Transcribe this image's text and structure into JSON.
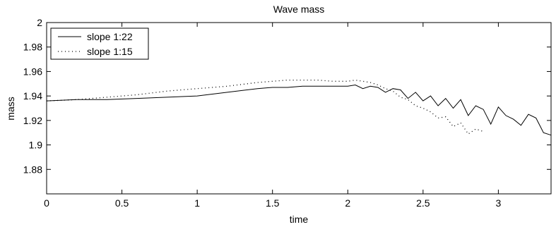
{
  "chart_data": {
    "type": "line",
    "title": "Wave mass",
    "xlabel": "time",
    "ylabel": "mass",
    "xlim": [
      0,
      3.35
    ],
    "ylim": [
      1.86,
      2.0
    ],
    "xticks": [
      0,
      0.5,
      1,
      1.5,
      2,
      2.5,
      3
    ],
    "xtick_labels": [
      "0",
      "0.5",
      "1",
      "1.5",
      "2",
      "2.5",
      "3"
    ],
    "yticks": [
      1.88,
      1.9,
      1.92,
      1.94,
      1.96,
      1.98,
      2.0
    ],
    "ytick_labels": [
      "1.88",
      "1.9",
      "1.92",
      "1.94",
      "1.96",
      "1.98",
      "2"
    ],
    "grid": false,
    "legend_position": "top-left",
    "series": [
      {
        "name": "slope 1:22",
        "style": "solid",
        "color": "#000000",
        "x": [
          0,
          0.2,
          0.4,
          0.6,
          0.8,
          1.0,
          1.2,
          1.4,
          1.5,
          1.6,
          1.7,
          1.8,
          1.9,
          2.0,
          2.05,
          2.1,
          2.15,
          2.2,
          2.25,
          2.3,
          2.35,
          2.4,
          2.45,
          2.5,
          2.55,
          2.6,
          2.65,
          2.7,
          2.75,
          2.8,
          2.85,
          2.9,
          2.95,
          3.0,
          3.05,
          3.1,
          3.15,
          3.2,
          3.25,
          3.3,
          3.35
        ],
        "y": [
          1.936,
          1.937,
          1.937,
          1.938,
          1.939,
          1.94,
          1.943,
          1.946,
          1.947,
          1.947,
          1.948,
          1.948,
          1.948,
          1.948,
          1.949,
          1.946,
          1.948,
          1.947,
          1.943,
          1.946,
          1.945,
          1.938,
          1.943,
          1.936,
          1.94,
          1.932,
          1.938,
          1.93,
          1.937,
          1.924,
          1.932,
          1.929,
          1.917,
          1.931,
          1.924,
          1.921,
          1.916,
          1.925,
          1.922,
          1.91,
          1.908
        ]
      },
      {
        "name": "slope 1:15",
        "style": "dotted",
        "color": "#000000",
        "x": [
          0,
          0.2,
          0.4,
          0.6,
          0.8,
          1.0,
          1.2,
          1.4,
          1.5,
          1.6,
          1.7,
          1.8,
          1.9,
          2.0,
          2.05,
          2.1,
          2.15,
          2.2,
          2.25,
          2.3,
          2.35,
          2.4,
          2.45,
          2.5,
          2.55,
          2.6,
          2.65,
          2.7,
          2.75,
          2.8,
          2.85,
          2.9
        ],
        "y": [
          1.936,
          1.937,
          1.939,
          1.941,
          1.944,
          1.946,
          1.948,
          1.951,
          1.952,
          1.953,
          1.953,
          1.953,
          1.952,
          1.952,
          1.953,
          1.952,
          1.951,
          1.949,
          1.946,
          1.944,
          1.939,
          1.937,
          1.932,
          1.93,
          1.927,
          1.922,
          1.923,
          1.915,
          1.918,
          1.909,
          1.913,
          1.911
        ]
      }
    ]
  }
}
